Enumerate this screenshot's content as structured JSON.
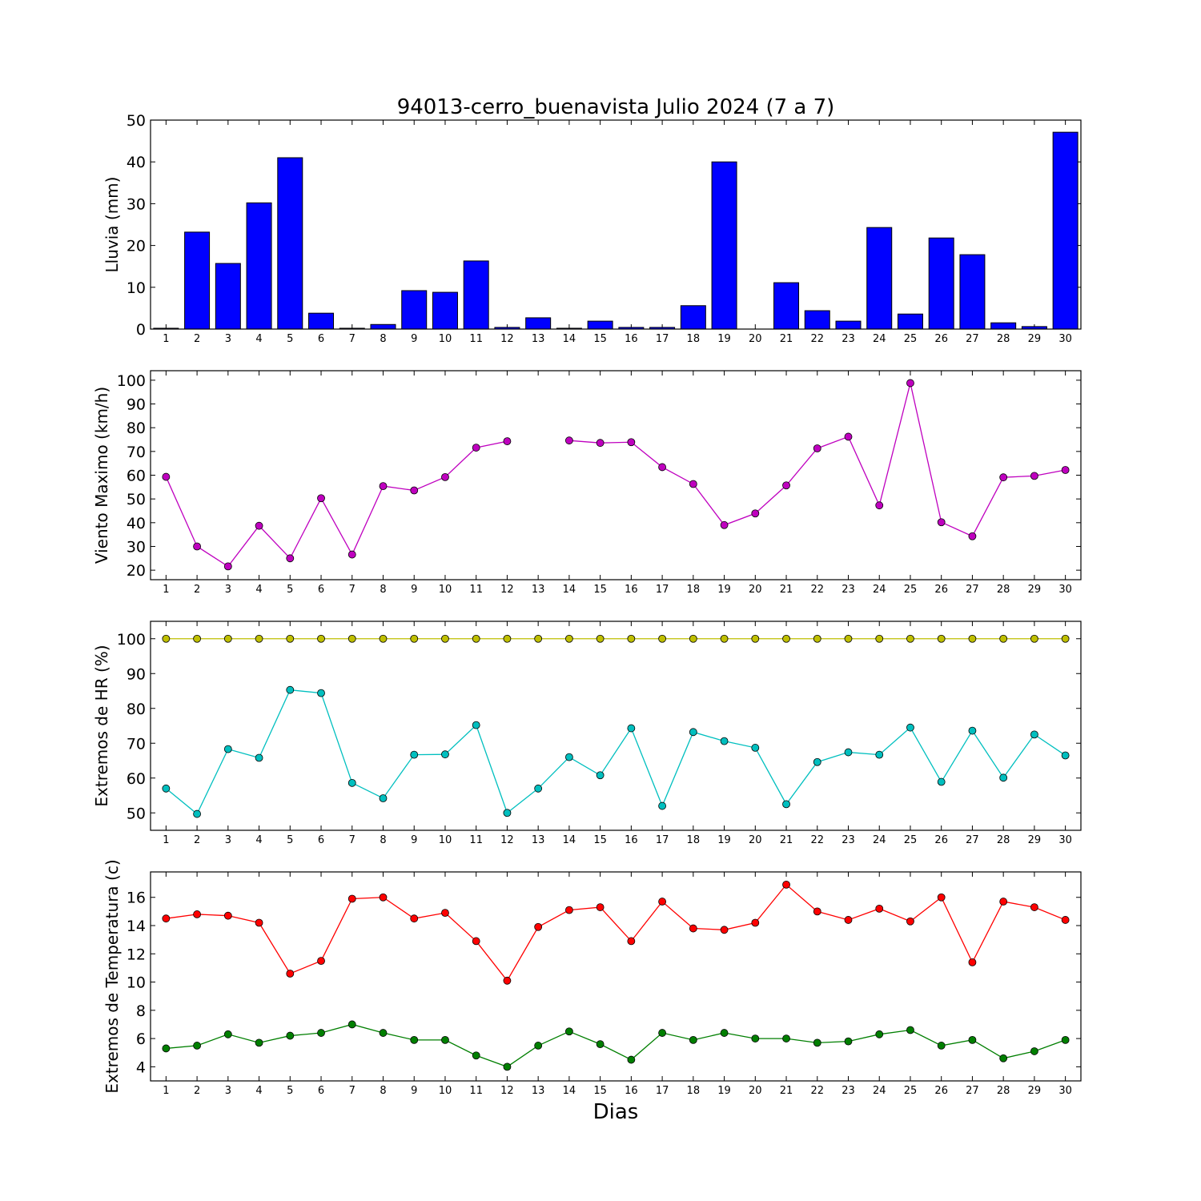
{
  "figure": {
    "title": "94013-cerro_buenavista Julio 2024  (7 a 7)",
    "xlabel": "Dias"
  },
  "chart_data": [
    {
      "type": "bar",
      "ylabel": "Lluvia (mm)",
      "ylim": [
        0,
        50
      ],
      "yticks": [
        0,
        10,
        20,
        30,
        40,
        50
      ],
      "x": [
        1,
        2,
        3,
        4,
        5,
        6,
        7,
        8,
        9,
        10,
        11,
        12,
        13,
        14,
        15,
        16,
        17,
        18,
        19,
        20,
        21,
        22,
        23,
        24,
        25,
        26,
        27,
        28,
        29,
        30
      ],
      "series": [
        {
          "color": "#0000ff",
          "values": [
            0.2,
            23.2,
            15.7,
            30.2,
            41.0,
            3.8,
            0.2,
            1.1,
            9.2,
            8.8,
            16.3,
            0.4,
            2.7,
            0.2,
            1.9,
            0.4,
            0.4,
            5.6,
            40.0,
            0.0,
            11.1,
            4.4,
            1.9,
            24.3,
            3.6,
            21.8,
            17.8,
            1.5,
            0.6,
            47.1
          ]
        }
      ]
    },
    {
      "type": "line",
      "ylabel": "Viento Maximo (km/h)",
      "ylim": [
        16,
        104
      ],
      "yticks": [
        20,
        30,
        40,
        50,
        60,
        70,
        80,
        90,
        100
      ],
      "x": [
        1,
        2,
        3,
        4,
        5,
        6,
        7,
        8,
        9,
        10,
        11,
        12,
        13,
        14,
        15,
        16,
        17,
        18,
        19,
        20,
        21,
        22,
        23,
        24,
        25,
        26,
        27,
        28,
        29,
        30
      ],
      "series": [
        {
          "color": "#bf00bf",
          "values": [
            59.3,
            30.0,
            21.6,
            38.7,
            25.0,
            50.3,
            26.6,
            55.4,
            53.6,
            59.2,
            71.6,
            74.3,
            null,
            74.6,
            73.6,
            73.9,
            63.4,
            56.3,
            39.0,
            43.9,
            55.7,
            71.3,
            76.2,
            47.3,
            98.8,
            40.2,
            34.3,
            59.1,
            59.7,
            62.2
          ]
        }
      ]
    },
    {
      "type": "line",
      "ylabel": "Extremos de HR (%)",
      "ylim": [
        45,
        105
      ],
      "yticks": [
        50,
        60,
        70,
        80,
        90,
        100
      ],
      "x": [
        1,
        2,
        3,
        4,
        5,
        6,
        7,
        8,
        9,
        10,
        11,
        12,
        13,
        14,
        15,
        16,
        17,
        18,
        19,
        20,
        21,
        22,
        23,
        24,
        25,
        26,
        27,
        28,
        29,
        30
      ],
      "series": [
        {
          "color": "#bfbf00",
          "values": [
            100,
            100,
            100,
            100,
            100,
            100,
            100,
            100,
            100,
            100,
            100,
            100,
            100,
            100,
            100,
            100,
            100,
            100,
            100,
            100,
            100,
            100,
            100,
            100,
            100,
            100,
            100,
            100,
            100,
            100
          ]
        },
        {
          "color": "#00bfbf",
          "values": [
            57.0,
            49.7,
            68.3,
            65.8,
            85.3,
            84.4,
            58.6,
            54.2,
            66.7,
            66.8,
            75.2,
            50.0,
            57.0,
            66.0,
            60.8,
            74.3,
            52.0,
            73.2,
            70.6,
            68.7,
            52.5,
            64.6,
            67.4,
            66.7,
            74.5,
            58.9,
            73.6,
            60.1,
            72.5,
            66.5
          ]
        }
      ]
    },
    {
      "type": "line",
      "ylabel": "Extremos de Temperatura (c)",
      "ylim": [
        3,
        17.8
      ],
      "yticks": [
        4,
        6,
        8,
        10,
        12,
        14,
        16
      ],
      "x": [
        1,
        2,
        3,
        4,
        5,
        6,
        7,
        8,
        9,
        10,
        11,
        12,
        13,
        14,
        15,
        16,
        17,
        18,
        19,
        20,
        21,
        22,
        23,
        24,
        25,
        26,
        27,
        28,
        29,
        30
      ],
      "series": [
        {
          "color": "#ff0000",
          "values": [
            14.5,
            14.8,
            14.7,
            14.2,
            10.6,
            11.5,
            15.9,
            16.0,
            14.5,
            14.9,
            12.9,
            10.1,
            13.9,
            15.1,
            15.3,
            12.9,
            15.7,
            13.8,
            13.7,
            14.2,
            16.9,
            15.0,
            14.4,
            15.2,
            14.3,
            16.0,
            11.4,
            15.7,
            15.3,
            14.4
          ]
        },
        {
          "color": "#007f00",
          "values": [
            5.3,
            5.5,
            6.3,
            5.7,
            6.2,
            6.4,
            7.0,
            6.4,
            5.9,
            5.9,
            4.8,
            4.0,
            5.5,
            6.5,
            5.6,
            4.5,
            6.4,
            5.9,
            6.4,
            6.0,
            6.0,
            5.7,
            5.8,
            6.3,
            6.6,
            5.5,
            5.9,
            4.6,
            5.1,
            5.9
          ]
        }
      ]
    }
  ]
}
